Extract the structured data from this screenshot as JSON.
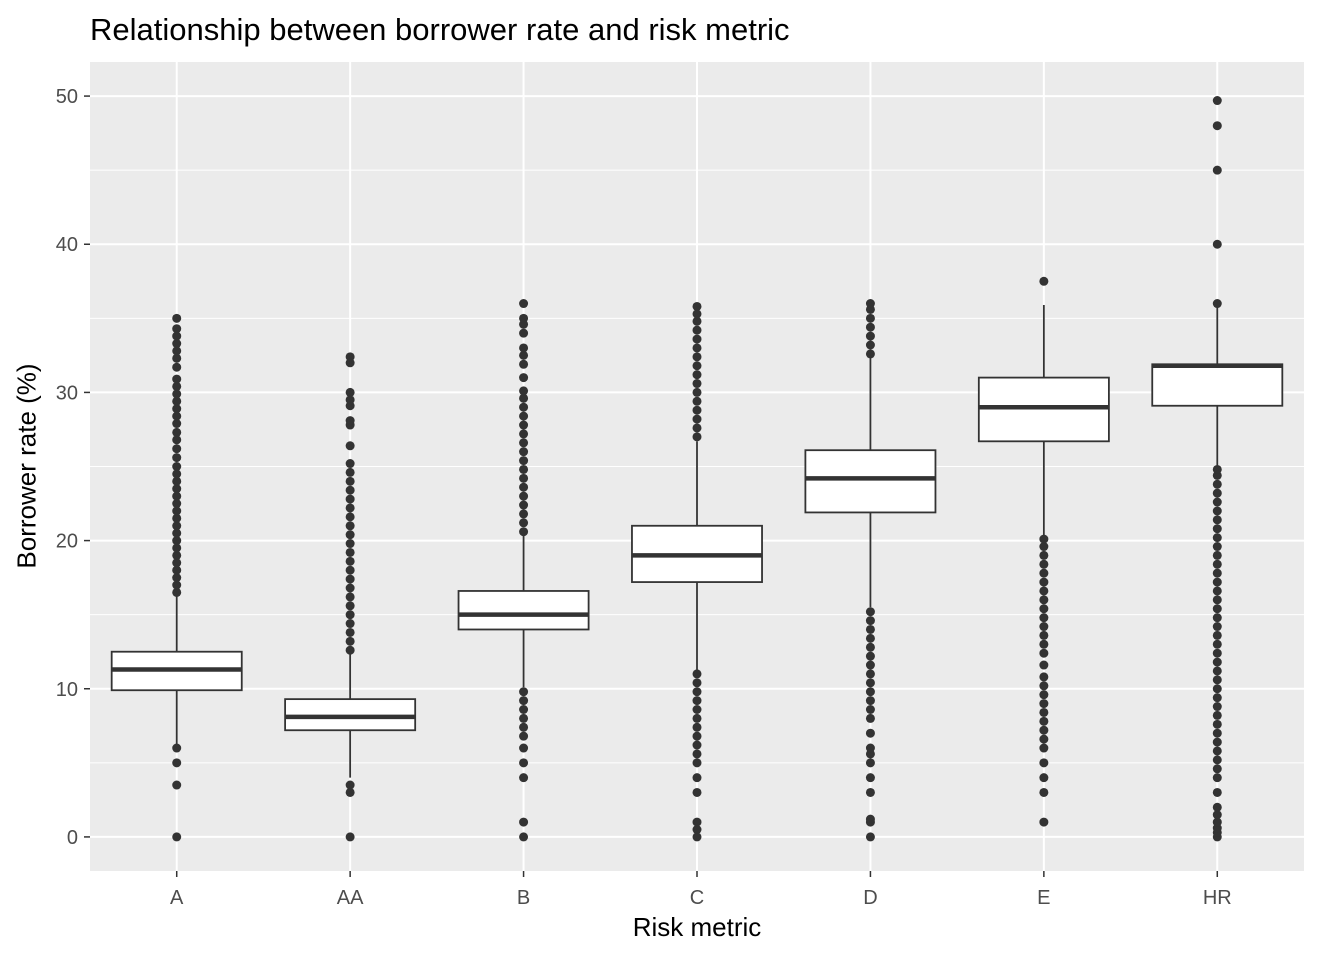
{
  "chart_data": {
    "type": "boxplot",
    "title": "Relationship between borrower rate and risk metric",
    "xlabel": "Risk metric",
    "ylabel": "Borrower rate (%)",
    "ylim": [
      -2.3,
      52.3
    ],
    "yticks": [
      0,
      10,
      20,
      30,
      40,
      50
    ],
    "grid": true,
    "colors": {
      "panel": "#ebebeb",
      "grid": "#ffffff",
      "box_fill": "#ffffff",
      "line": "#333333",
      "point": "#333333",
      "tick_text": "#4d4d4d"
    },
    "categories": [
      "A",
      "AA",
      "B",
      "C",
      "D",
      "E",
      "HR"
    ],
    "boxes": [
      {
        "category": "A",
        "lower_whisker": 6.2,
        "q1": 9.9,
        "median": 11.3,
        "q3": 12.5,
        "upper_whisker": 16.3,
        "outliers": [
          0,
          3.5,
          5.0,
          6.0,
          16.5,
          17.0,
          17.5,
          18.0,
          18.5,
          19.0,
          19.5,
          20.0,
          20.5,
          21.0,
          21.5,
          22.0,
          22.5,
          23.0,
          23.5,
          24.0,
          24.5,
          25.0,
          25.6,
          26.2,
          26.8,
          27.3,
          27.9,
          28.4,
          28.9,
          29.4,
          29.9,
          30.4,
          30.9,
          31.7,
          32.3,
          32.8,
          33.3,
          33.8,
          34.3,
          35.0
        ]
      },
      {
        "category": "AA",
        "lower_whisker": 4.0,
        "q1": 7.2,
        "median": 8.1,
        "q3": 9.3,
        "upper_whisker": 12.4,
        "outliers": [
          0,
          3.0,
          3.5,
          12.6,
          13.2,
          13.8,
          14.4,
          15.0,
          15.6,
          16.2,
          16.8,
          17.4,
          18.0,
          18.6,
          19.2,
          19.8,
          20.4,
          21.0,
          21.6,
          22.2,
          22.8,
          23.4,
          24.0,
          24.6,
          25.2,
          26.4,
          27.8,
          28.1,
          29.1,
          29.5,
          30.0,
          32.0,
          32.4
        ]
      },
      {
        "category": "B",
        "lower_whisker": 10.1,
        "q1": 14.0,
        "median": 15.0,
        "q3": 16.6,
        "upper_whisker": 20.4,
        "outliers": [
          0,
          1.0,
          4.0,
          5.0,
          6.0,
          6.8,
          7.4,
          8.0,
          8.6,
          9.2,
          9.8,
          20.6,
          21.2,
          21.8,
          22.4,
          23.0,
          23.6,
          24.2,
          24.8,
          25.4,
          26.0,
          26.6,
          27.2,
          27.8,
          28.4,
          29.0,
          29.6,
          30.1,
          31.0,
          31.9,
          32.5,
          33.0,
          34.0,
          34.6,
          35.0,
          36.0
        ]
      },
      {
        "category": "C",
        "lower_whisker": 11.2,
        "q1": 17.2,
        "median": 19.0,
        "q3": 21.0,
        "upper_whisker": 26.7,
        "outliers": [
          0,
          0.5,
          1.0,
          3.0,
          4.0,
          5.0,
          5.6,
          6.2,
          6.8,
          7.4,
          8.0,
          8.6,
          9.2,
          9.8,
          10.4,
          11.0,
          27.0,
          27.6,
          28.2,
          28.8,
          29.4,
          30.0,
          30.6,
          31.2,
          31.8,
          32.4,
          33.0,
          33.6,
          34.2,
          34.8,
          35.3,
          35.8
        ]
      },
      {
        "category": "D",
        "lower_whisker": 15.5,
        "q1": 21.9,
        "median": 24.2,
        "q3": 26.1,
        "upper_whisker": 32.4,
        "outliers": [
          0,
          1.0,
          1.2,
          3.0,
          4.0,
          5.0,
          5.6,
          6.0,
          7.0,
          8.0,
          8.6,
          9.2,
          9.8,
          10.4,
          11.0,
          11.6,
          12.2,
          12.8,
          13.4,
          14.0,
          14.6,
          15.2,
          32.6,
          33.2,
          33.8,
          34.4,
          35.0,
          35.6,
          36.0
        ]
      },
      {
        "category": "E",
        "lower_whisker": 20.3,
        "q1": 26.7,
        "median": 29.0,
        "q3": 31.0,
        "upper_whisker": 35.9,
        "outliers": [
          1.0,
          3.0,
          4.0,
          5.0,
          6.0,
          6.6,
          7.2,
          7.8,
          8.4,
          9.0,
          9.6,
          10.2,
          10.8,
          11.6,
          12.4,
          13.0,
          13.6,
          14.2,
          14.8,
          15.4,
          16.0,
          16.6,
          17.2,
          17.8,
          18.4,
          19.0,
          19.6,
          20.1,
          37.5
        ]
      },
      {
        "category": "HR",
        "lower_whisker": 25.0,
        "q1": 29.1,
        "median": 31.8,
        "q3": 31.9,
        "upper_whisker": 35.9,
        "outliers": [
          0,
          0.3,
          0.6,
          1.0,
          1.5,
          2.0,
          3.0,
          4.0,
          4.6,
          5.2,
          5.8,
          6.4,
          7.0,
          7.6,
          8.2,
          8.8,
          9.4,
          10.0,
          10.6,
          11.2,
          11.8,
          12.4,
          13.0,
          13.6,
          14.2,
          14.8,
          15.4,
          16.0,
          16.6,
          17.2,
          17.8,
          18.4,
          19.0,
          19.6,
          20.2,
          20.8,
          21.4,
          22.0,
          22.6,
          23.2,
          23.8,
          24.4,
          24.8,
          36.0,
          40.0,
          45.0,
          48.0,
          49.7
        ]
      }
    ]
  }
}
